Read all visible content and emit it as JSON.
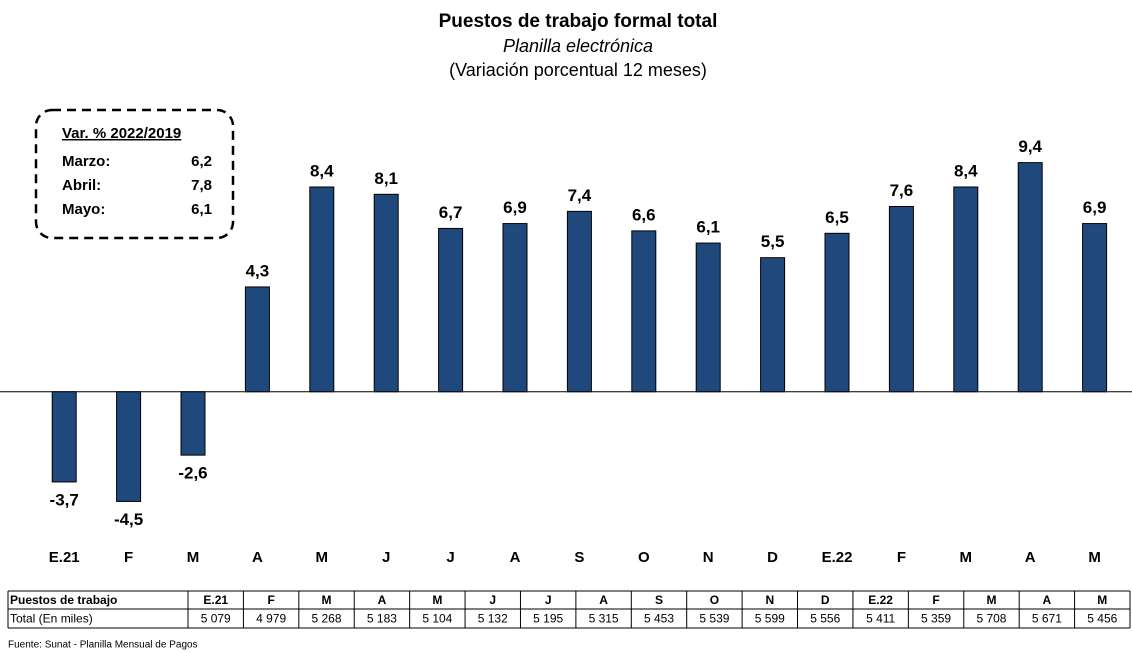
{
  "chart_data": {
    "type": "bar",
    "title": "Puestos de trabajo formal total",
    "subtitle": "Planilla electrónica",
    "subtitle2": "(Variación porcentual 12 meses)",
    "categories": [
      "E.21",
      "F",
      "M",
      "A",
      "M",
      "J",
      "J",
      "A",
      "S",
      "O",
      "N",
      "D",
      "E.22",
      "F",
      "M",
      "A",
      "M"
    ],
    "values": [
      -3.7,
      -4.5,
      -2.6,
      4.3,
      8.4,
      8.1,
      6.7,
      6.9,
      7.4,
      6.6,
      6.1,
      5.5,
      6.5,
      7.6,
      8.4,
      9.4,
      6.9
    ],
    "value_labels": [
      "-3,7",
      "-4,5",
      "-2,6",
      "4,3",
      "8,4",
      "8,1",
      "6,7",
      "6,9",
      "7,4",
      "6,6",
      "6,1",
      "5,5",
      "6,5",
      "7,6",
      "8,4",
      "9,4",
      "6,9"
    ],
    "color": "#1f497d",
    "ylim": [
      -6,
      10
    ]
  },
  "inset": {
    "title": "Var. % 2022/2019",
    "rows": [
      [
        "Marzo:",
        "6,2"
      ],
      [
        "Abril:",
        "7,8"
      ],
      [
        "Mayo:",
        "6,1"
      ]
    ]
  },
  "table": {
    "header": "Puestos de trabajo",
    "row_label": "Total (En miles)",
    "values": [
      "5 079",
      "4 979",
      "5 268",
      "5 183",
      "5 104",
      "5 132",
      "5 195",
      "5 315",
      "5 453",
      "5 539",
      "5 599",
      "5 556",
      "5 411",
      "5 359",
      "5 708",
      "5 671",
      "5 456"
    ]
  },
  "source": "Fuente: Sunat - Planilla Mensual de Pagos"
}
